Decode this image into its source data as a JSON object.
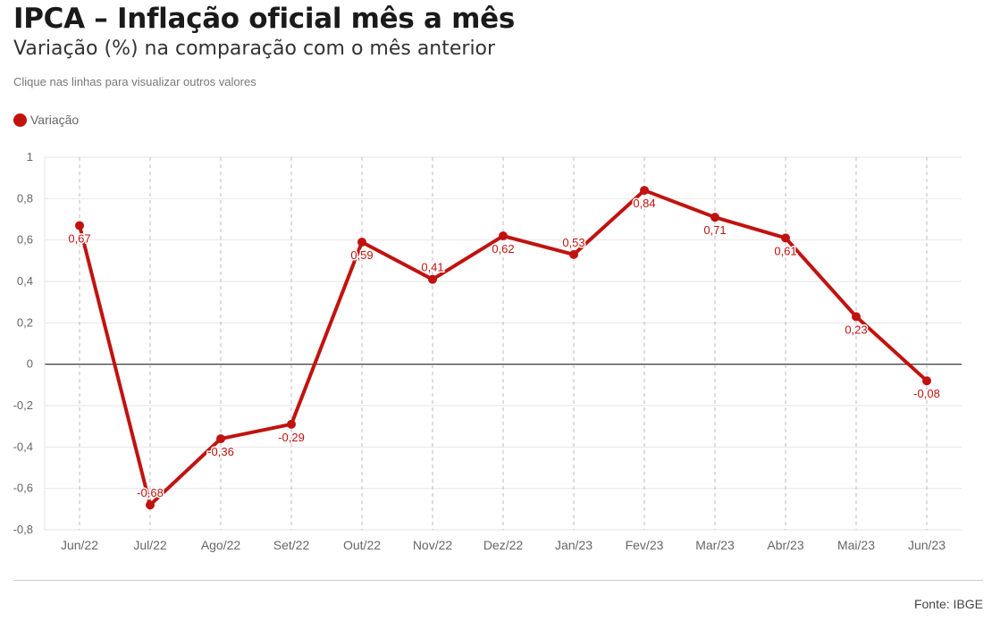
{
  "header": {
    "title": "IPCA – Inflação oficial mês a mês",
    "subtitle": "Variação (%) na comparação com o mês anterior",
    "hint": "Clique nas linhas para visualizar outros valores"
  },
  "footer": {
    "source": "Fonte: IBGE"
  },
  "colors": {
    "series": "#c0130f",
    "grid": "#e6e6e6",
    "gridline_vertical": "#bbbbbb",
    "zero_line": "#222222",
    "tick_text": "#666666"
  },
  "chart_data": {
    "type": "line",
    "x": [
      "Jun/22",
      "Jul/22",
      "Ago/22",
      "Set/22",
      "Out/22",
      "Nov/22",
      "Dez/22",
      "Jan/23",
      "Fev/23",
      "Mar/23",
      "Abr/23",
      "Mai/23",
      "Jun/23"
    ],
    "series": [
      {
        "name": "Variação",
        "values": [
          0.67,
          -0.68,
          -0.36,
          -0.29,
          0.59,
          0.41,
          0.62,
          0.53,
          0.84,
          0.71,
          0.61,
          0.23,
          -0.08
        ],
        "labels": [
          "0,67",
          "-0,68",
          "-0,36",
          "-0,29",
          "0,59",
          "0,41",
          "0,62",
          "0,53",
          "0,84",
          "0,71",
          "0,61",
          "0,23",
          "-0,08"
        ]
      }
    ],
    "ylim": [
      -0.8,
      1
    ],
    "yticks": [
      1,
      0.8,
      0.6,
      0.4,
      0.2,
      0,
      -0.2,
      -0.4,
      -0.6,
      -0.8
    ],
    "ytick_labels": [
      "1",
      "0,8",
      "0,6",
      "0,4",
      "0,2",
      "0",
      "-0,2",
      "-0,4",
      "-0,6",
      "-0,8"
    ],
    "legend_position": "top-left",
    "grid": true
  }
}
